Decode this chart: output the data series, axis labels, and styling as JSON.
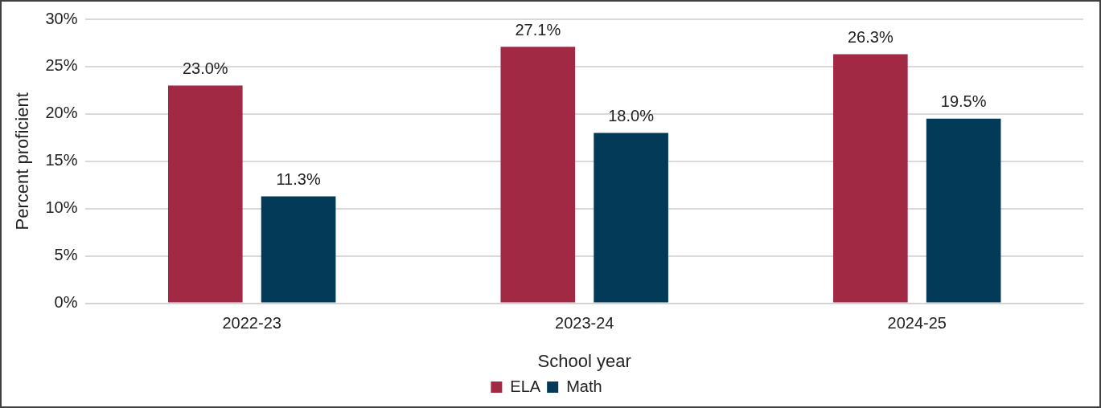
{
  "chart_data": {
    "type": "bar",
    "xlabel": "School year",
    "ylabel": "Percent proficient",
    "categories": [
      "2022-23",
      "2023-24",
      "2024-25"
    ],
    "series": [
      {
        "name": "ELA",
        "color": "#a12944",
        "values": [
          23.0,
          27.1,
          26.3
        ],
        "value_labels": [
          "23.0%",
          "27.1%",
          "26.3%"
        ]
      },
      {
        "name": "Math",
        "color": "#023a57",
        "values": [
          11.3,
          18.0,
          19.5
        ],
        "value_labels": [
          "11.3%",
          "18.0%",
          "19.5%"
        ]
      }
    ],
    "ylim": [
      0,
      30
    ],
    "yticks": [
      {
        "value": 0,
        "label": "0%"
      },
      {
        "value": 5,
        "label": "5%"
      },
      {
        "value": 10,
        "label": "10%"
      },
      {
        "value": 15,
        "label": "15%"
      },
      {
        "value": 20,
        "label": "20%"
      },
      {
        "value": 25,
        "label": "25%"
      },
      {
        "value": 30,
        "label": "30%"
      }
    ],
    "grid": "y",
    "legend": "bottom"
  }
}
